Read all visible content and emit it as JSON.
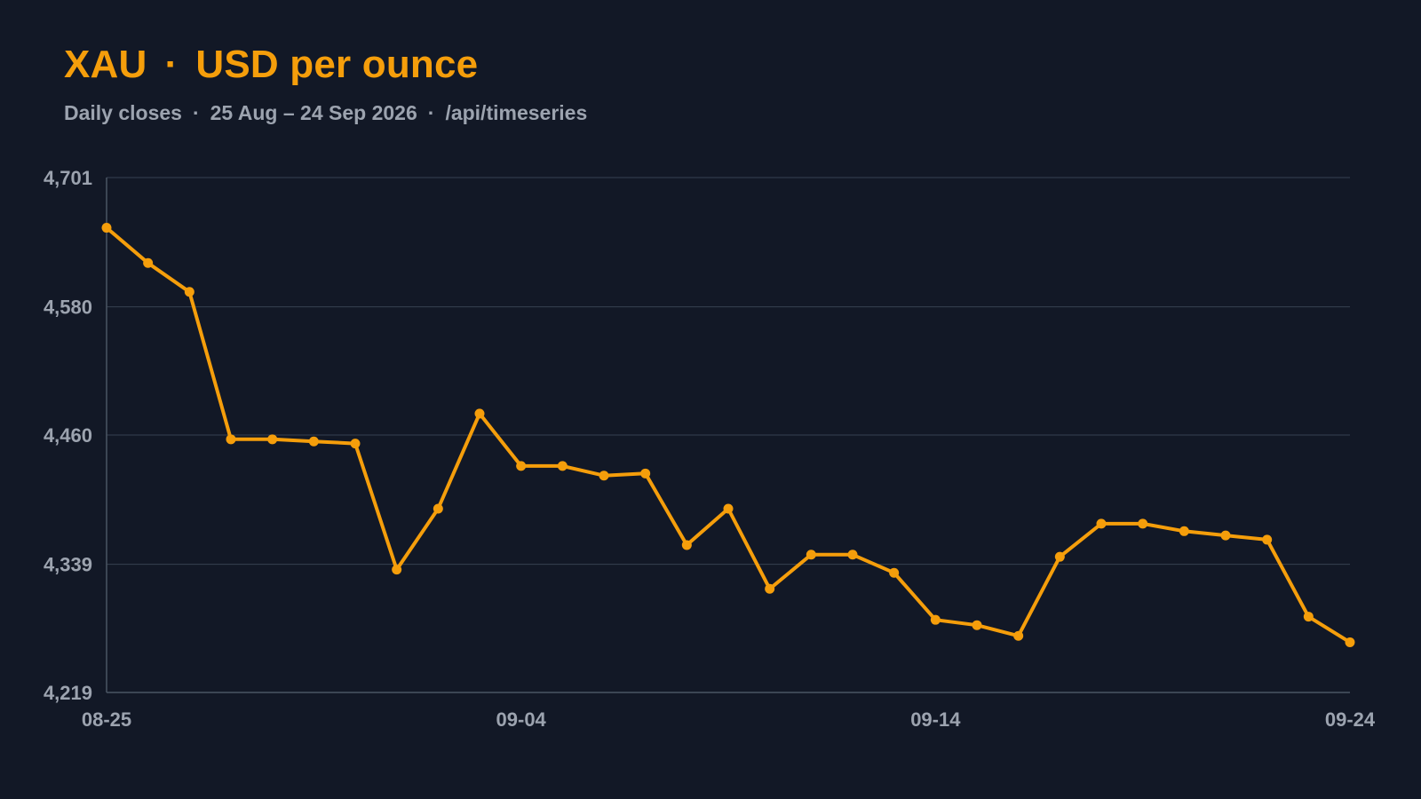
{
  "header": {
    "symbol": "XAU",
    "separator": "·",
    "unit": "USD per ounce",
    "subtitle_parts": [
      "Daily closes",
      "25 Aug – 24 Sep 2026",
      "/api/timeseries"
    ],
    "subtitle_separator": "·"
  },
  "colors": {
    "background": "#121826",
    "accent": "#f59e0b",
    "muted_text": "#9ca3af",
    "grid": "#374151",
    "axis": "#4b5563"
  },
  "chart_data": {
    "type": "line",
    "title": "XAU · USD per ounce",
    "subtitle": "Daily closes · 25 Aug – 24 Sep 2026 · /api/timeseries",
    "xlabel": "",
    "ylabel": "",
    "x": [
      "08-25",
      "08-26",
      "08-27",
      "08-28",
      "08-29",
      "08-30",
      "08-31",
      "09-01",
      "09-02",
      "09-03",
      "09-04",
      "09-05",
      "09-06",
      "09-07",
      "09-08",
      "09-09",
      "09-10",
      "09-11",
      "09-12",
      "09-13",
      "09-14",
      "09-15",
      "09-16",
      "09-17",
      "09-18",
      "09-19",
      "09-20",
      "09-21",
      "09-22",
      "09-23",
      "09-24"
    ],
    "series": [
      {
        "values": [
          4654,
          4621,
          4594,
          4456,
          4456,
          4454,
          4452,
          4334,
          4391,
          4480,
          4431,
          4431,
          4422,
          4424,
          4357,
          4391,
          4316,
          4348,
          4348,
          4331,
          4287,
          4282,
          4272,
          4346,
          4377,
          4377,
          4370,
          4366,
          4362,
          4290,
          4266
        ]
      }
    ],
    "x_tick_labels": [
      "08-25",
      "09-04",
      "09-14",
      "09-24"
    ],
    "y_tick_labels": [
      "4,219",
      "4,339",
      "4,460",
      "4,580",
      "4,701"
    ],
    "ylim": [
      4219,
      4701
    ],
    "grid": true,
    "grid_axis": "y",
    "markers": true
  }
}
